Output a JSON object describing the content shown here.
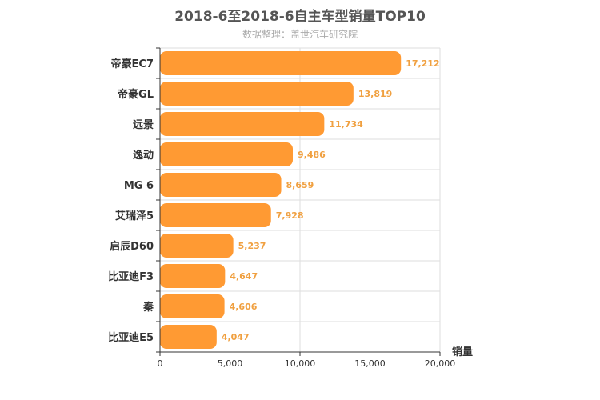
{
  "chart_data": {
    "type": "bar",
    "orientation": "horizontal",
    "title": "2018-6至2018-6自主车型销量TOP10",
    "subtitle": "数据整理：盖世汽车研究院",
    "xlabel": "销量",
    "categories": [
      "帝豪EC7",
      "帝豪GL",
      "远景",
      "逸动",
      "MG 6",
      "艾瑞泽5",
      "启辰D60",
      "比亚迪F3",
      "秦",
      "比亚迪E5"
    ],
    "values": [
      17212,
      13819,
      11734,
      9486,
      8659,
      7928,
      5237,
      4647,
      4606,
      4047
    ],
    "value_labels": [
      "17,212",
      "13,819",
      "11,734",
      "9,486",
      "8,659",
      "7,928",
      "5,237",
      "4,647",
      "4,606",
      "4,047"
    ],
    "xlim": [
      0,
      20000
    ],
    "xticks": [
      0,
      5000,
      10000,
      15000,
      20000
    ],
    "xtick_labels": [
      "0",
      "5,000",
      "10,000",
      "15,000",
      "20,000"
    ],
    "grid": true,
    "bar_color": "#ff9a33",
    "value_label_color": "#f0a040"
  }
}
